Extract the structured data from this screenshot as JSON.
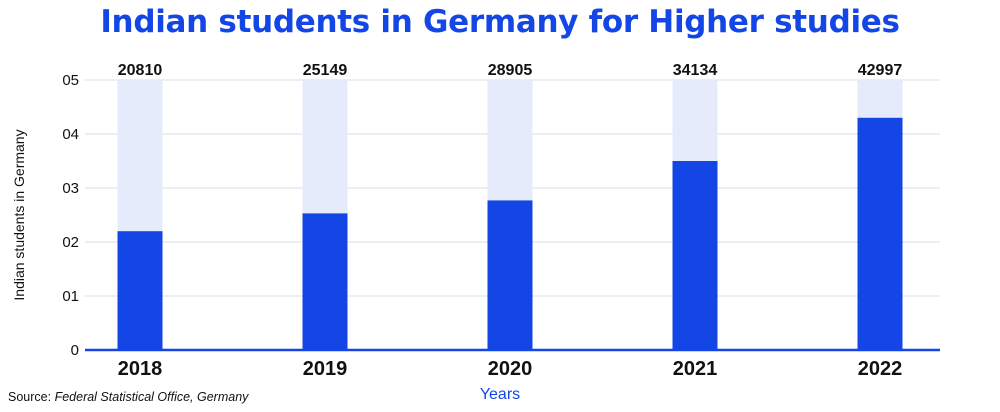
{
  "chart_data": {
    "type": "bar",
    "title": "Indian students in Germany for Higher studies",
    "xlabel": "Years",
    "ylabel": "Indian students in Germany",
    "categories": [
      "2018",
      "2019",
      "2020",
      "2021",
      "2022"
    ],
    "values": [
      20810,
      25149,
      28905,
      34134,
      42997
    ],
    "data_labels": [
      "20810",
      "25149",
      "28905",
      "34134",
      "42997"
    ],
    "background_bar_level": 5,
    "bar_levels": [
      2.2,
      2.53,
      2.77,
      3.5,
      4.3
    ],
    "yticks": [
      "0",
      "01",
      "02",
      "03",
      "04",
      "05"
    ],
    "ylim": [
      0,
      5
    ],
    "grid": true,
    "legend": "none",
    "colors": {
      "bar": "#1446e6",
      "bar_background": "#e6ebfb",
      "title": "#1446e6",
      "grid": "#d9deea",
      "axis": "#1446e6"
    }
  },
  "source": {
    "prefix": "Source:",
    "name": "Federal Statistical Office, Germany"
  }
}
